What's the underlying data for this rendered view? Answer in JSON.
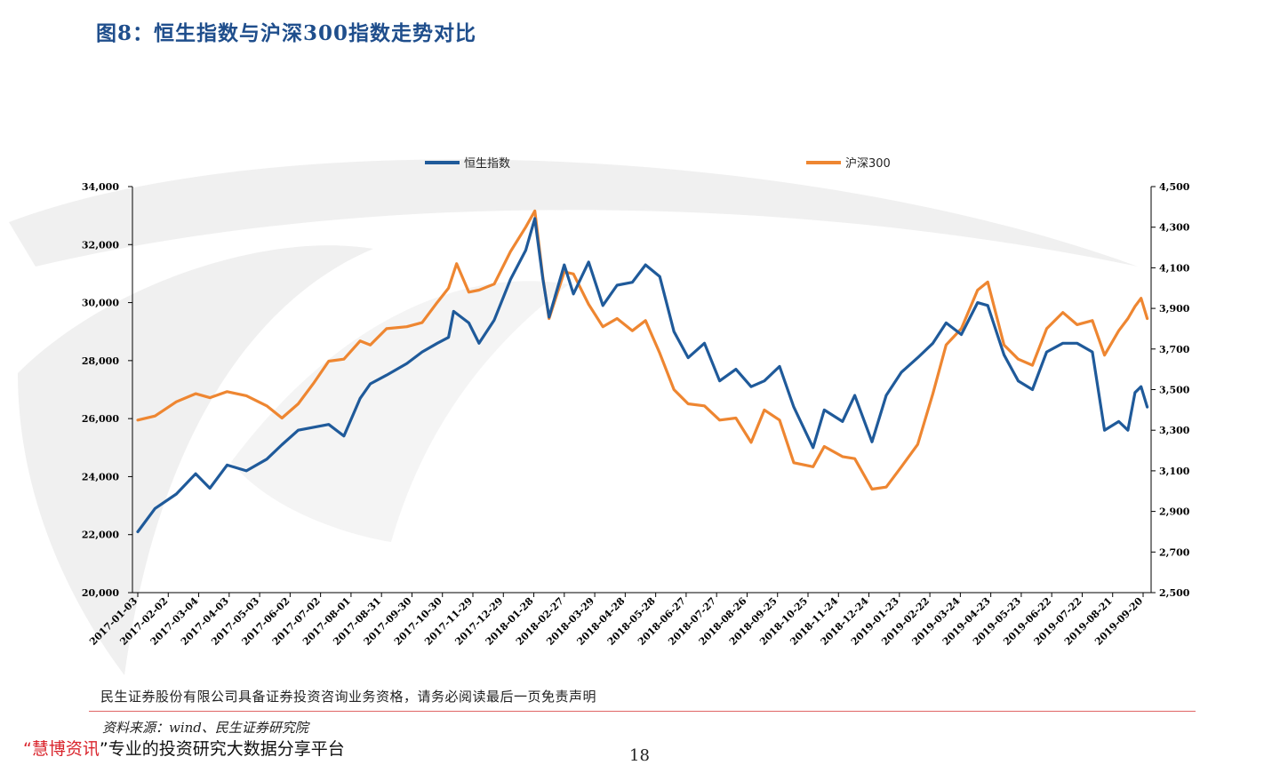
{
  "figure_title": "图8：恒生指数与沪深300指数走势对比",
  "disclaimer": "民生证券股份有限公司具备证券投资咨询业务资格，请务必阅读最后一页免责声明",
  "source": "资料来源：wind、民生证券研究院",
  "footer": {
    "quote_open": "“",
    "brand": "慧博资讯",
    "quote_close": "”",
    "tagline": "专业的投资研究大数据分享平台"
  },
  "page_number": "18",
  "colors": {
    "hsi": "#1f5a9a",
    "csi300": "#ee8631",
    "title": "#1f4e8c",
    "divider": "#e06666",
    "brand": "#d9232b"
  },
  "chart_data": {
    "type": "line",
    "title": "",
    "legend_position": "top",
    "grid": false,
    "x_ticks": [
      "2017-01-03",
      "2017-02-02",
      "2017-03-04",
      "2017-04-03",
      "2017-05-03",
      "2017-06-02",
      "2017-07-02",
      "2017-08-01",
      "2017-08-31",
      "2017-09-30",
      "2017-10-30",
      "2017-11-29",
      "2017-12-29",
      "2018-01-28",
      "2018-02-27",
      "2018-03-29",
      "2018-04-28",
      "2018-05-28",
      "2018-06-27",
      "2018-07-27",
      "2018-08-26",
      "2018-09-25",
      "2018-10-25",
      "2018-11-24",
      "2018-12-24",
      "2019-01-23",
      "2019-02-22",
      "2019-03-24",
      "2019-04-23",
      "2019-05-23",
      "2019-06-22",
      "2019-07-22",
      "2019-08-21",
      "2019-09-20"
    ],
    "y_left": {
      "min": 20000,
      "max": 34000,
      "ticks": [
        "20,000",
        "22,000",
        "24,000",
        "26,000",
        "28,000",
        "30,000",
        "32,000",
        "34,000"
      ]
    },
    "y_right": {
      "min": 2500,
      "max": 4500,
      "ticks": [
        "2,500",
        "2,700",
        "2,900",
        "3,100",
        "3,300",
        "3,500",
        "3,700",
        "3,900",
        "4,100",
        "4,300",
        "4,500"
      ]
    },
    "series": [
      {
        "name": "恒生指数",
        "axis": "left",
        "x": [
          "2017-01-03",
          "2017-01-20",
          "2017-02-10",
          "2017-03-01",
          "2017-03-15",
          "2017-04-01",
          "2017-04-20",
          "2017-05-10",
          "2017-05-25",
          "2017-06-10",
          "2017-06-25",
          "2017-07-10",
          "2017-07-25",
          "2017-08-10",
          "2017-08-20",
          "2017-09-05",
          "2017-09-25",
          "2017-10-10",
          "2017-10-25",
          "2017-11-05",
          "2017-11-10",
          "2017-11-25",
          "2017-12-05",
          "2017-12-20",
          "2018-01-05",
          "2018-01-20",
          "2018-01-29",
          "2018-02-06",
          "2018-02-12",
          "2018-02-27",
          "2018-03-08",
          "2018-03-23",
          "2018-04-06",
          "2018-04-20",
          "2018-05-05",
          "2018-05-18",
          "2018-06-01",
          "2018-06-15",
          "2018-06-29",
          "2018-07-15",
          "2018-07-30",
          "2018-08-15",
          "2018-08-30",
          "2018-09-12",
          "2018-09-27",
          "2018-10-11",
          "2018-10-30",
          "2018-11-10",
          "2018-11-28",
          "2018-12-10",
          "2018-12-27",
          "2019-01-10",
          "2019-01-25",
          "2019-02-10",
          "2019-02-25",
          "2019-03-10",
          "2019-03-25",
          "2019-04-10",
          "2019-04-20",
          "2019-05-06",
          "2019-05-20",
          "2019-06-03",
          "2019-06-17",
          "2019-07-03",
          "2019-07-17",
          "2019-08-01",
          "2019-08-13",
          "2019-08-27",
          "2019-09-05",
          "2019-09-12",
          "2019-09-18",
          "2019-09-24"
        ],
        "values": [
          22100,
          22900,
          23400,
          24100,
          23600,
          24400,
          24200,
          24600,
          25100,
          25600,
          25700,
          25800,
          25400,
          26700,
          27200,
          27500,
          27900,
          28300,
          28600,
          28800,
          29700,
          29300,
          28600,
          29400,
          30800,
          31800,
          32900,
          30800,
          29500,
          31300,
          30300,
          31400,
          29900,
          30600,
          30700,
          31300,
          30900,
          29000,
          28100,
          28600,
          27300,
          27700,
          27100,
          27300,
          27800,
          26400,
          25000,
          26300,
          25900,
          26800,
          25200,
          26800,
          27600,
          28100,
          28600,
          29300,
          28900,
          30000,
          29900,
          28200,
          27300,
          27000,
          28300,
          28600,
          28600,
          28300,
          25600,
          25900,
          25600,
          26900,
          27100,
          26400
        ]
      },
      {
        "name": "沪深300",
        "axis": "right",
        "x": [
          "2017-01-03",
          "2017-01-20",
          "2017-02-10",
          "2017-03-01",
          "2017-03-15",
          "2017-04-01",
          "2017-04-20",
          "2017-05-10",
          "2017-05-25",
          "2017-06-10",
          "2017-06-25",
          "2017-07-10",
          "2017-07-25",
          "2017-08-10",
          "2017-08-20",
          "2017-09-05",
          "2017-09-25",
          "2017-10-10",
          "2017-10-25",
          "2017-11-05",
          "2017-11-13",
          "2017-11-25",
          "2017-12-05",
          "2017-12-20",
          "2018-01-05",
          "2018-01-20",
          "2018-01-29",
          "2018-02-06",
          "2018-02-12",
          "2018-02-27",
          "2018-03-08",
          "2018-03-23",
          "2018-04-06",
          "2018-04-20",
          "2018-05-05",
          "2018-05-18",
          "2018-06-01",
          "2018-06-15",
          "2018-06-29",
          "2018-07-15",
          "2018-07-30",
          "2018-08-15",
          "2018-08-30",
          "2018-09-12",
          "2018-09-27",
          "2018-10-11",
          "2018-10-30",
          "2018-11-10",
          "2018-11-28",
          "2018-12-10",
          "2018-12-27",
          "2019-01-10",
          "2019-01-25",
          "2019-02-10",
          "2019-02-25",
          "2019-03-10",
          "2019-03-25",
          "2019-04-10",
          "2019-04-20",
          "2019-05-06",
          "2019-05-20",
          "2019-06-03",
          "2019-06-17",
          "2019-07-03",
          "2019-07-17",
          "2019-08-01",
          "2019-08-13",
          "2019-08-27",
          "2019-09-05",
          "2019-09-12",
          "2019-09-18",
          "2019-09-24"
        ],
        "values": [
          3350,
          3370,
          3440,
          3480,
          3460,
          3490,
          3470,
          3420,
          3360,
          3430,
          3530,
          3640,
          3650,
          3740,
          3720,
          3800,
          3810,
          3830,
          3930,
          4000,
          4120,
          3980,
          3990,
          4020,
          4180,
          4300,
          4380,
          4050,
          3850,
          4080,
          4070,
          3920,
          3810,
          3850,
          3790,
          3840,
          3680,
          3500,
          3430,
          3420,
          3350,
          3360,
          3240,
          3400,
          3350,
          3140,
          3120,
          3220,
          3170,
          3160,
          3010,
          3020,
          3120,
          3230,
          3480,
          3720,
          3800,
          3990,
          4030,
          3720,
          3650,
          3620,
          3800,
          3880,
          3820,
          3840,
          3670,
          3790,
          3850,
          3910,
          3950,
          3850
        ]
      }
    ]
  }
}
